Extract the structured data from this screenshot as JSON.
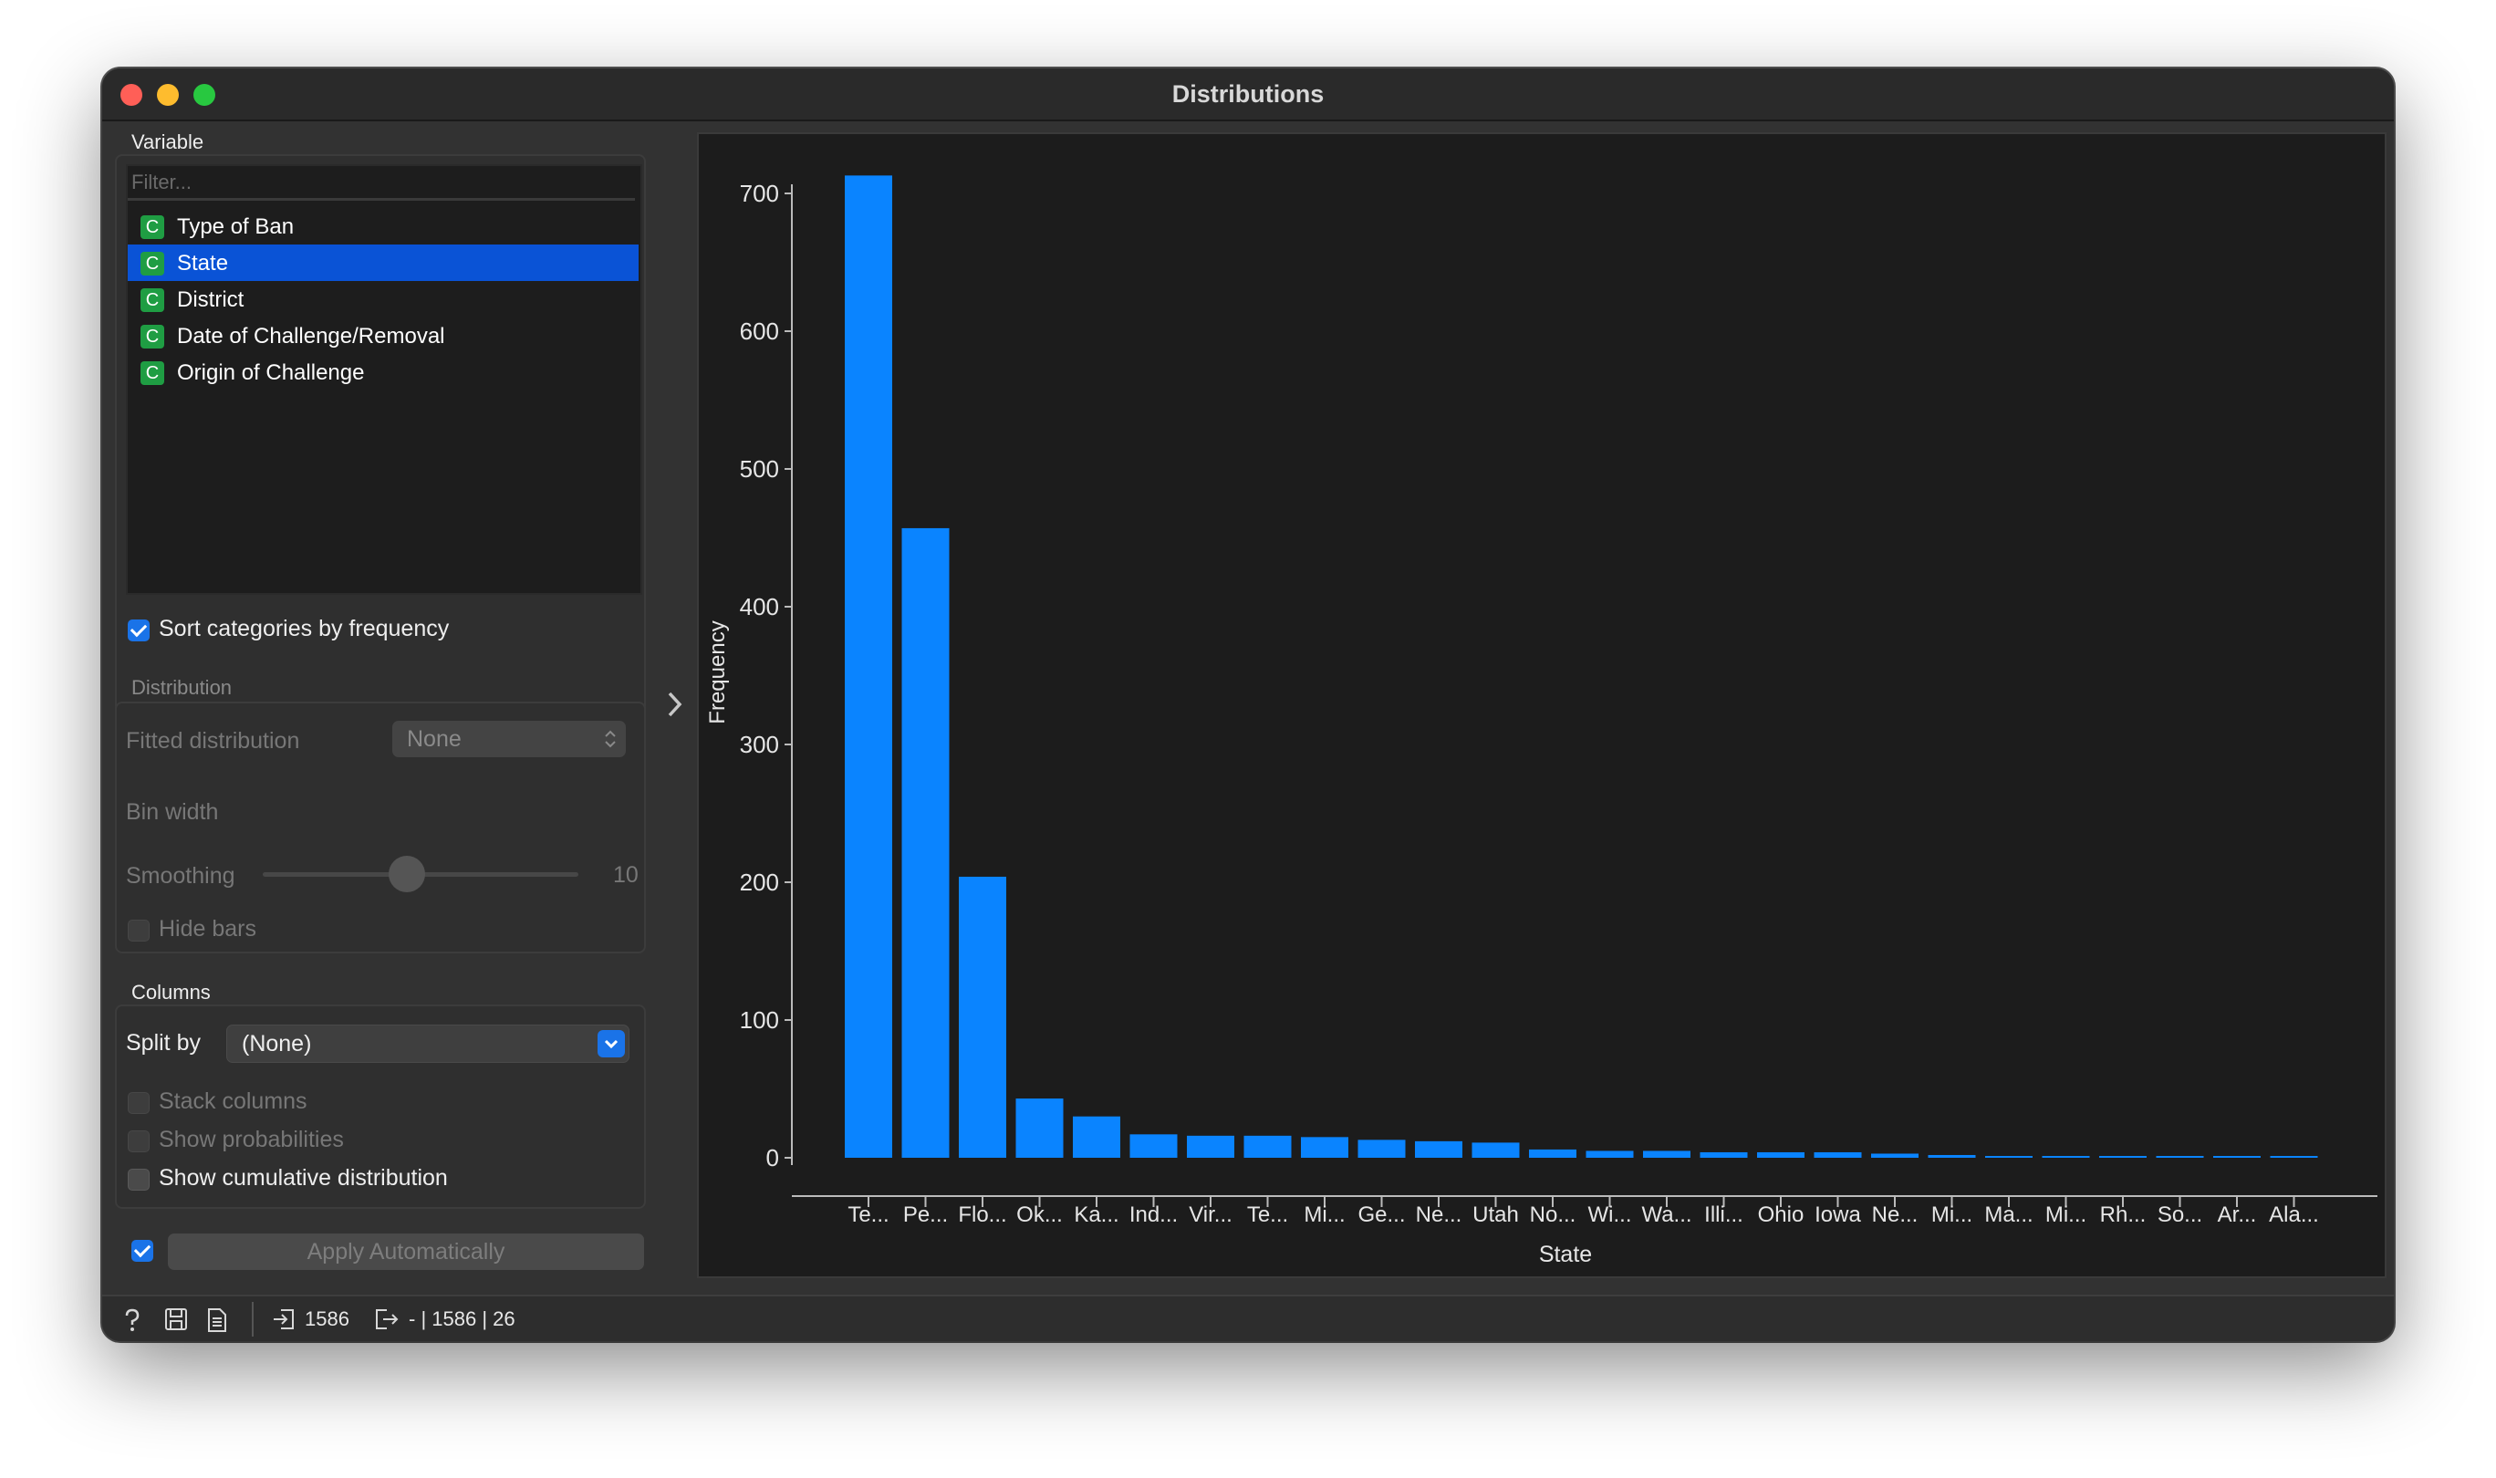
{
  "window": {
    "title": "Distributions"
  },
  "variable": {
    "section_label": "Variable",
    "filter_placeholder": "Filter...",
    "items": [
      {
        "type_icon": "C",
        "label": "Type of Ban",
        "selected": false
      },
      {
        "type_icon": "C",
        "label": "State",
        "selected": true
      },
      {
        "type_icon": "C",
        "label": "District",
        "selected": false
      },
      {
        "type_icon": "C",
        "label": "Date of Challenge/Removal",
        "selected": false
      },
      {
        "type_icon": "C",
        "label": "Origin of Challenge",
        "selected": false
      }
    ],
    "sort_label": "Sort categories by frequency",
    "sort_checked": true
  },
  "distribution": {
    "section_label": "Distribution",
    "fitted_label": "Fitted distribution",
    "fitted_value": "None",
    "bin_width_label": "Bin width",
    "smoothing_label": "Smoothing",
    "smoothing_value": "10",
    "hide_bars_label": "Hide bars"
  },
  "columns": {
    "section_label": "Columns",
    "split_label": "Split by",
    "split_value": "(None)",
    "stack_label": "Stack columns",
    "probabilities_label": "Show probabilities",
    "cumulative_label": "Show cumulative distribution"
  },
  "apply": {
    "label": "Apply Automatically",
    "checked": true
  },
  "status": {
    "input_count": "1586",
    "output_info": "- | 1586 | 26"
  },
  "colors": {
    "bar": "#0a84ff",
    "selection": "#0a53d6",
    "accent": "#1a73e8",
    "category_icon": "#1f9d43"
  },
  "chart_data": {
    "type": "bar",
    "xlabel": "State",
    "ylabel": "Frequency",
    "ylim": [
      0,
      700
    ],
    "yticks": [
      0,
      100,
      200,
      300,
      400,
      500,
      600,
      700
    ],
    "categories": [
      "Te...",
      "Pe...",
      "Flo...",
      "Ok...",
      "Ka...",
      "Ind...",
      "Vir...",
      "Te...",
      "Mi...",
      "Ge...",
      "Ne...",
      "Utah",
      "No...",
      "Wi...",
      "Wa...",
      "Illi...",
      "Ohio",
      "Iowa",
      "Ne...",
      "Mi...",
      "Ma...",
      "Mi...",
      "Rh...",
      "So...",
      "Ar...",
      "Ala..."
    ],
    "values": [
      713,
      457,
      204,
      43,
      30,
      17,
      16,
      16,
      15,
      13,
      12,
      11,
      6,
      5,
      5,
      4,
      4,
      4,
      3,
      2,
      1,
      1,
      1,
      1,
      1,
      1
    ]
  }
}
